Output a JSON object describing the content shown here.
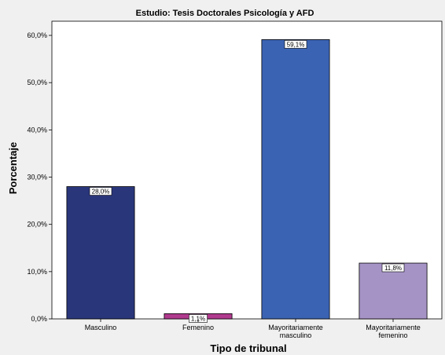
{
  "chart_data": {
    "type": "bar",
    "title": "Estudio: Tesis Doctorales Psicología y AFD",
    "xlabel": "Tipo de tribunal",
    "ylabel": "Porcentaje",
    "categories": [
      [
        "Masculino"
      ],
      [
        "Femenino"
      ],
      [
        "Mayoritariamente",
        "masculino"
      ],
      [
        "Mayoritariamente",
        "femenino"
      ]
    ],
    "values": [
      28.0,
      1.1,
      59.1,
      11.8
    ],
    "value_labels": [
      "28,0%",
      "1,1%",
      "59,1%",
      "11,8%"
    ],
    "colors": [
      "#2a367a",
      "#b03a8e",
      "#3b63b3",
      "#a693c6"
    ],
    "ylim": [
      0,
      63
    ],
    "yticks": [
      0,
      10,
      20,
      30,
      40,
      50,
      60
    ],
    "ytick_labels": [
      "0,0%",
      "10,0%",
      "20,0%",
      "30,0%",
      "40,0%",
      "50,0%",
      "60,0%"
    ],
    "grid": false,
    "legend": "none"
  }
}
